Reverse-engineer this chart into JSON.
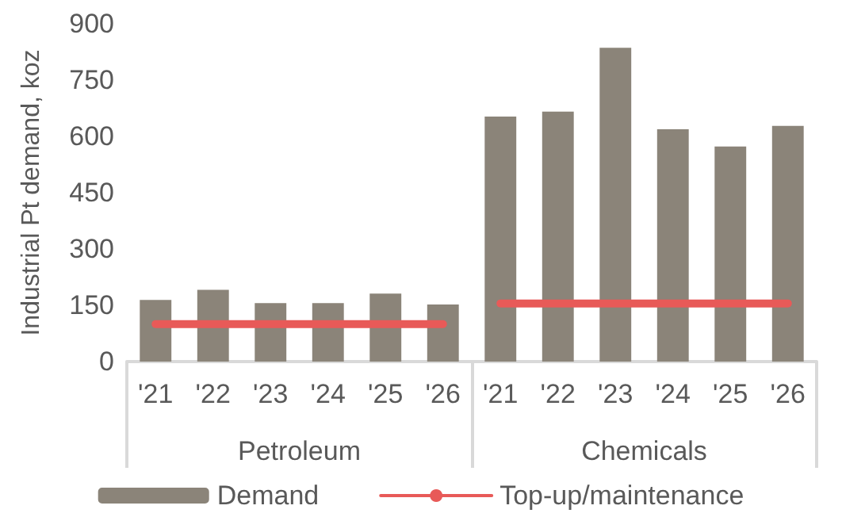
{
  "chart_data": {
    "type": "bar",
    "ylabel": "Industrial Pt demand, koz",
    "categories": [
      "'21",
      "'22",
      "'23",
      "'24",
      "'25",
      "'26",
      "'21",
      "'22",
      "'23",
      "'24",
      "'25",
      "'26"
    ],
    "series": [
      {
        "name": "Demand",
        "color": "#8b8479",
        "values": [
          164,
          191,
          156,
          156,
          181,
          152,
          653,
          666,
          836,
          619,
          573,
          628
        ]
      },
      {
        "name": "Top-up/maintenance",
        "type": "line",
        "color": "#e85a58",
        "values": [
          100,
          100,
          100,
          100,
          100,
          100,
          null,
          null,
          null,
          null,
          null,
          null
        ]
      },
      {
        "type": "line",
        "color": "#e85a58",
        "values": [
          null,
          null,
          null,
          null,
          null,
          null,
          155,
          155,
          155,
          155,
          155,
          155
        ]
      }
    ],
    "annotations": [
      "Petroleum",
      "Chemicals"
    ],
    "ylim": [
      0,
      900
    ],
    "yticks": [
      0,
      150,
      300,
      450,
      600,
      750,
      900
    ],
    "grid": false,
    "legend": "bottom",
    "marker": "none"
  }
}
